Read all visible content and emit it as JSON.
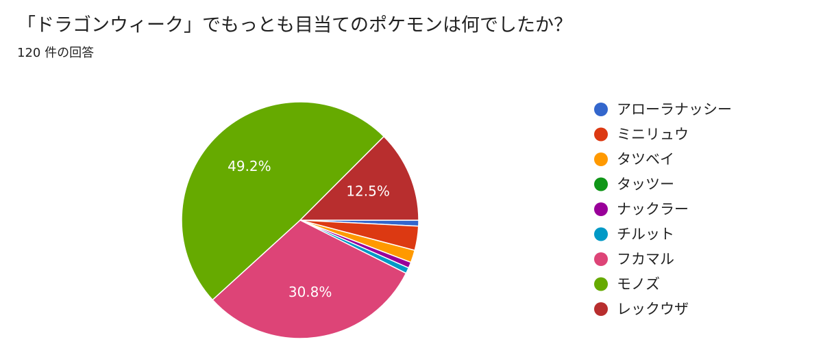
{
  "chart_data": {
    "type": "pie",
    "title": "「ドラゴンウィーク」でもっとも目当てのポケモンは何でしたか？",
    "subtitle": "120 件の回答",
    "categories": [
      "アローラナッシー",
      "ミニリュウ",
      "タツベイ",
      "タッツー",
      "ナックラー",
      "チルット",
      "フカマル",
      "モノズ",
      "レックウザ"
    ],
    "values": [
      0.8,
      3.3,
      1.7,
      0,
      0.8,
      0.8,
      30.8,
      49.2,
      12.5
    ],
    "value_labels": [
      null,
      null,
      null,
      null,
      null,
      null,
      "30.8%",
      "49.2%",
      "12.5%"
    ],
    "colors": [
      "#3366cc",
      "#dc3912",
      "#ff9900",
      "#109618",
      "#990099",
      "#0099c6",
      "#dd4477",
      "#66aa00",
      "#b82e2e"
    ],
    "legend": "right"
  }
}
